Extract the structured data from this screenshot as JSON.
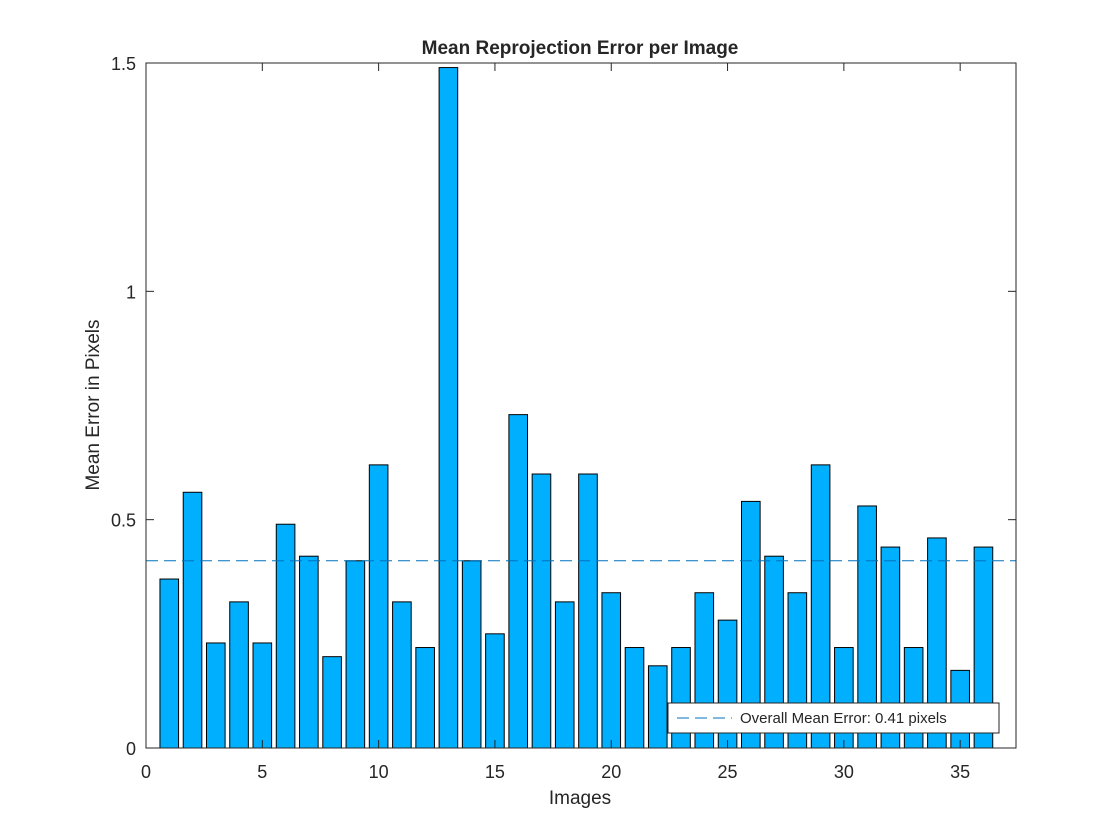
{
  "chart_data": {
    "type": "bar",
    "title": "Mean Reprojection Error per Image",
    "xlabel": "Images",
    "ylabel": "Mean Error in Pixels",
    "xlim": [
      0,
      37.4
    ],
    "ylim": [
      0,
      1.5
    ],
    "xticks": [
      0,
      5,
      10,
      15,
      20,
      25,
      30,
      35
    ],
    "yticks": [
      0,
      0.5,
      1,
      1.5
    ],
    "ytick_labels": [
      "0",
      "0.5",
      "1",
      "1.5"
    ],
    "grid": false,
    "bar_color": "#00B0FF",
    "x": [
      1,
      2,
      3,
      4,
      5,
      6,
      7,
      8,
      9,
      10,
      11,
      12,
      13,
      14,
      15,
      16,
      17,
      18,
      19,
      20,
      21,
      22,
      23,
      24,
      25,
      26,
      27,
      28,
      29,
      30,
      31,
      32,
      33,
      34,
      35,
      36
    ],
    "values": [
      0.37,
      0.56,
      0.23,
      0.32,
      0.23,
      0.49,
      0.42,
      0.2,
      0.41,
      0.62,
      0.32,
      0.22,
      1.49,
      0.41,
      0.25,
      0.73,
      0.6,
      0.32,
      0.6,
      0.34,
      0.22,
      0.18,
      0.22,
      0.34,
      0.28,
      0.54,
      0.42,
      0.34,
      0.62,
      0.22,
      0.53,
      0.44,
      0.22,
      0.46,
      0.17,
      0.44
    ],
    "mean_line": {
      "value": 0.41,
      "color": "#0072BD",
      "style": "dashed"
    },
    "legend": {
      "placement": "bottom-right",
      "entries": [
        "Overall Mean Error: 0.41 pixels"
      ]
    }
  }
}
